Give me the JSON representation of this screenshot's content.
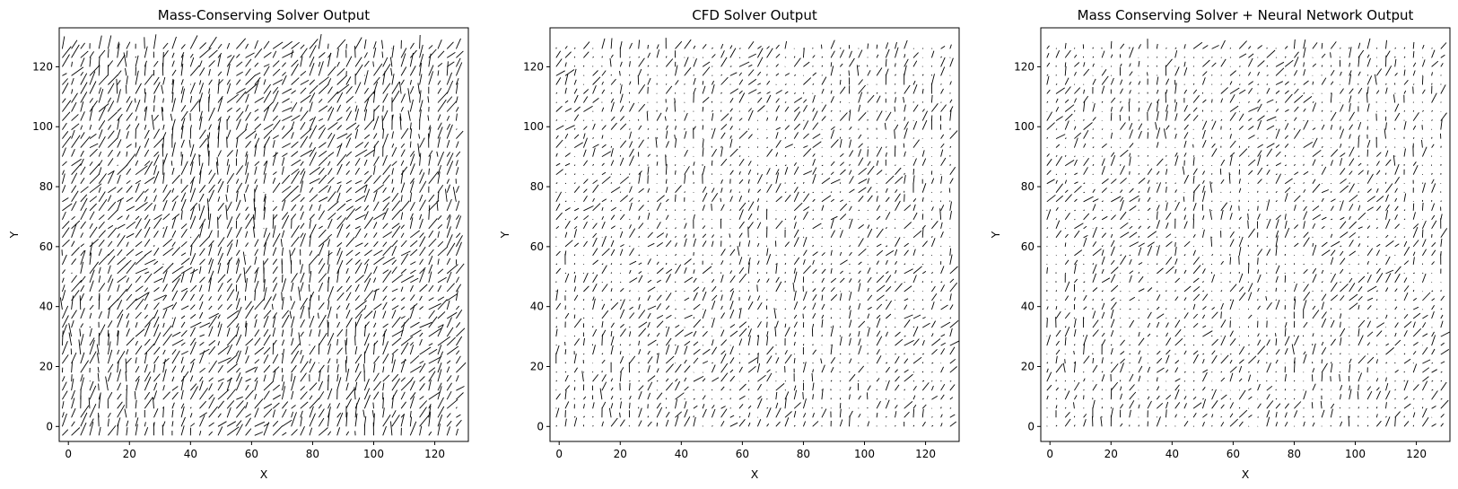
{
  "chart_data": [
    {
      "type": "quiver",
      "title": "Mass-Conserving Solver Output",
      "xlabel": "X",
      "ylabel": "Y",
      "xlim": [
        -3,
        131
      ],
      "ylim": [
        -5,
        133
      ],
      "xticks": [
        0,
        20,
        40,
        60,
        80,
        100,
        120
      ],
      "yticks": [
        0,
        20,
        40,
        60,
        80,
        100,
        120
      ],
      "grid": false,
      "field": {
        "x_range": [
          -2,
          128
        ],
        "y_range": [
          -3,
          128
        ],
        "sample_step": 3,
        "dominant_direction": "up-right",
        "magnitude_level": "high",
        "calm_fraction": 0.02,
        "seed": 11
      }
    },
    {
      "type": "quiver",
      "title": "CFD Solver Output",
      "xlabel": "X",
      "ylabel": "Y",
      "xlim": [
        -3,
        131
      ],
      "ylim": [
        -5,
        133
      ],
      "xticks": [
        0,
        20,
        40,
        60,
        80,
        100,
        120
      ],
      "yticks": [
        0,
        20,
        40,
        60,
        80,
        100,
        120
      ],
      "grid": false,
      "field": {
        "x_range": [
          -1,
          128
        ],
        "y_range": [
          0,
          128
        ],
        "sample_step": 3,
        "dominant_direction": "up-right",
        "magnitude_level": "medium",
        "calm_fraction": 0.35,
        "seed": 23
      }
    },
    {
      "type": "quiver",
      "title": "Mass Conserving Solver + Neural Network Output",
      "xlabel": "X",
      "ylabel": "Y",
      "xlim": [
        -3,
        131
      ],
      "ylim": [
        -5,
        133
      ],
      "xticks": [
        0,
        20,
        40,
        60,
        80,
        100,
        120
      ],
      "yticks": [
        0,
        20,
        40,
        60,
        80,
        100,
        120
      ],
      "grid": false,
      "field": {
        "x_range": [
          -1,
          128
        ],
        "y_range": [
          0,
          128
        ],
        "sample_step": 3,
        "dominant_direction": "up-right",
        "magnitude_level": "medium",
        "calm_fraction": 0.4,
        "seed": 37
      }
    }
  ]
}
